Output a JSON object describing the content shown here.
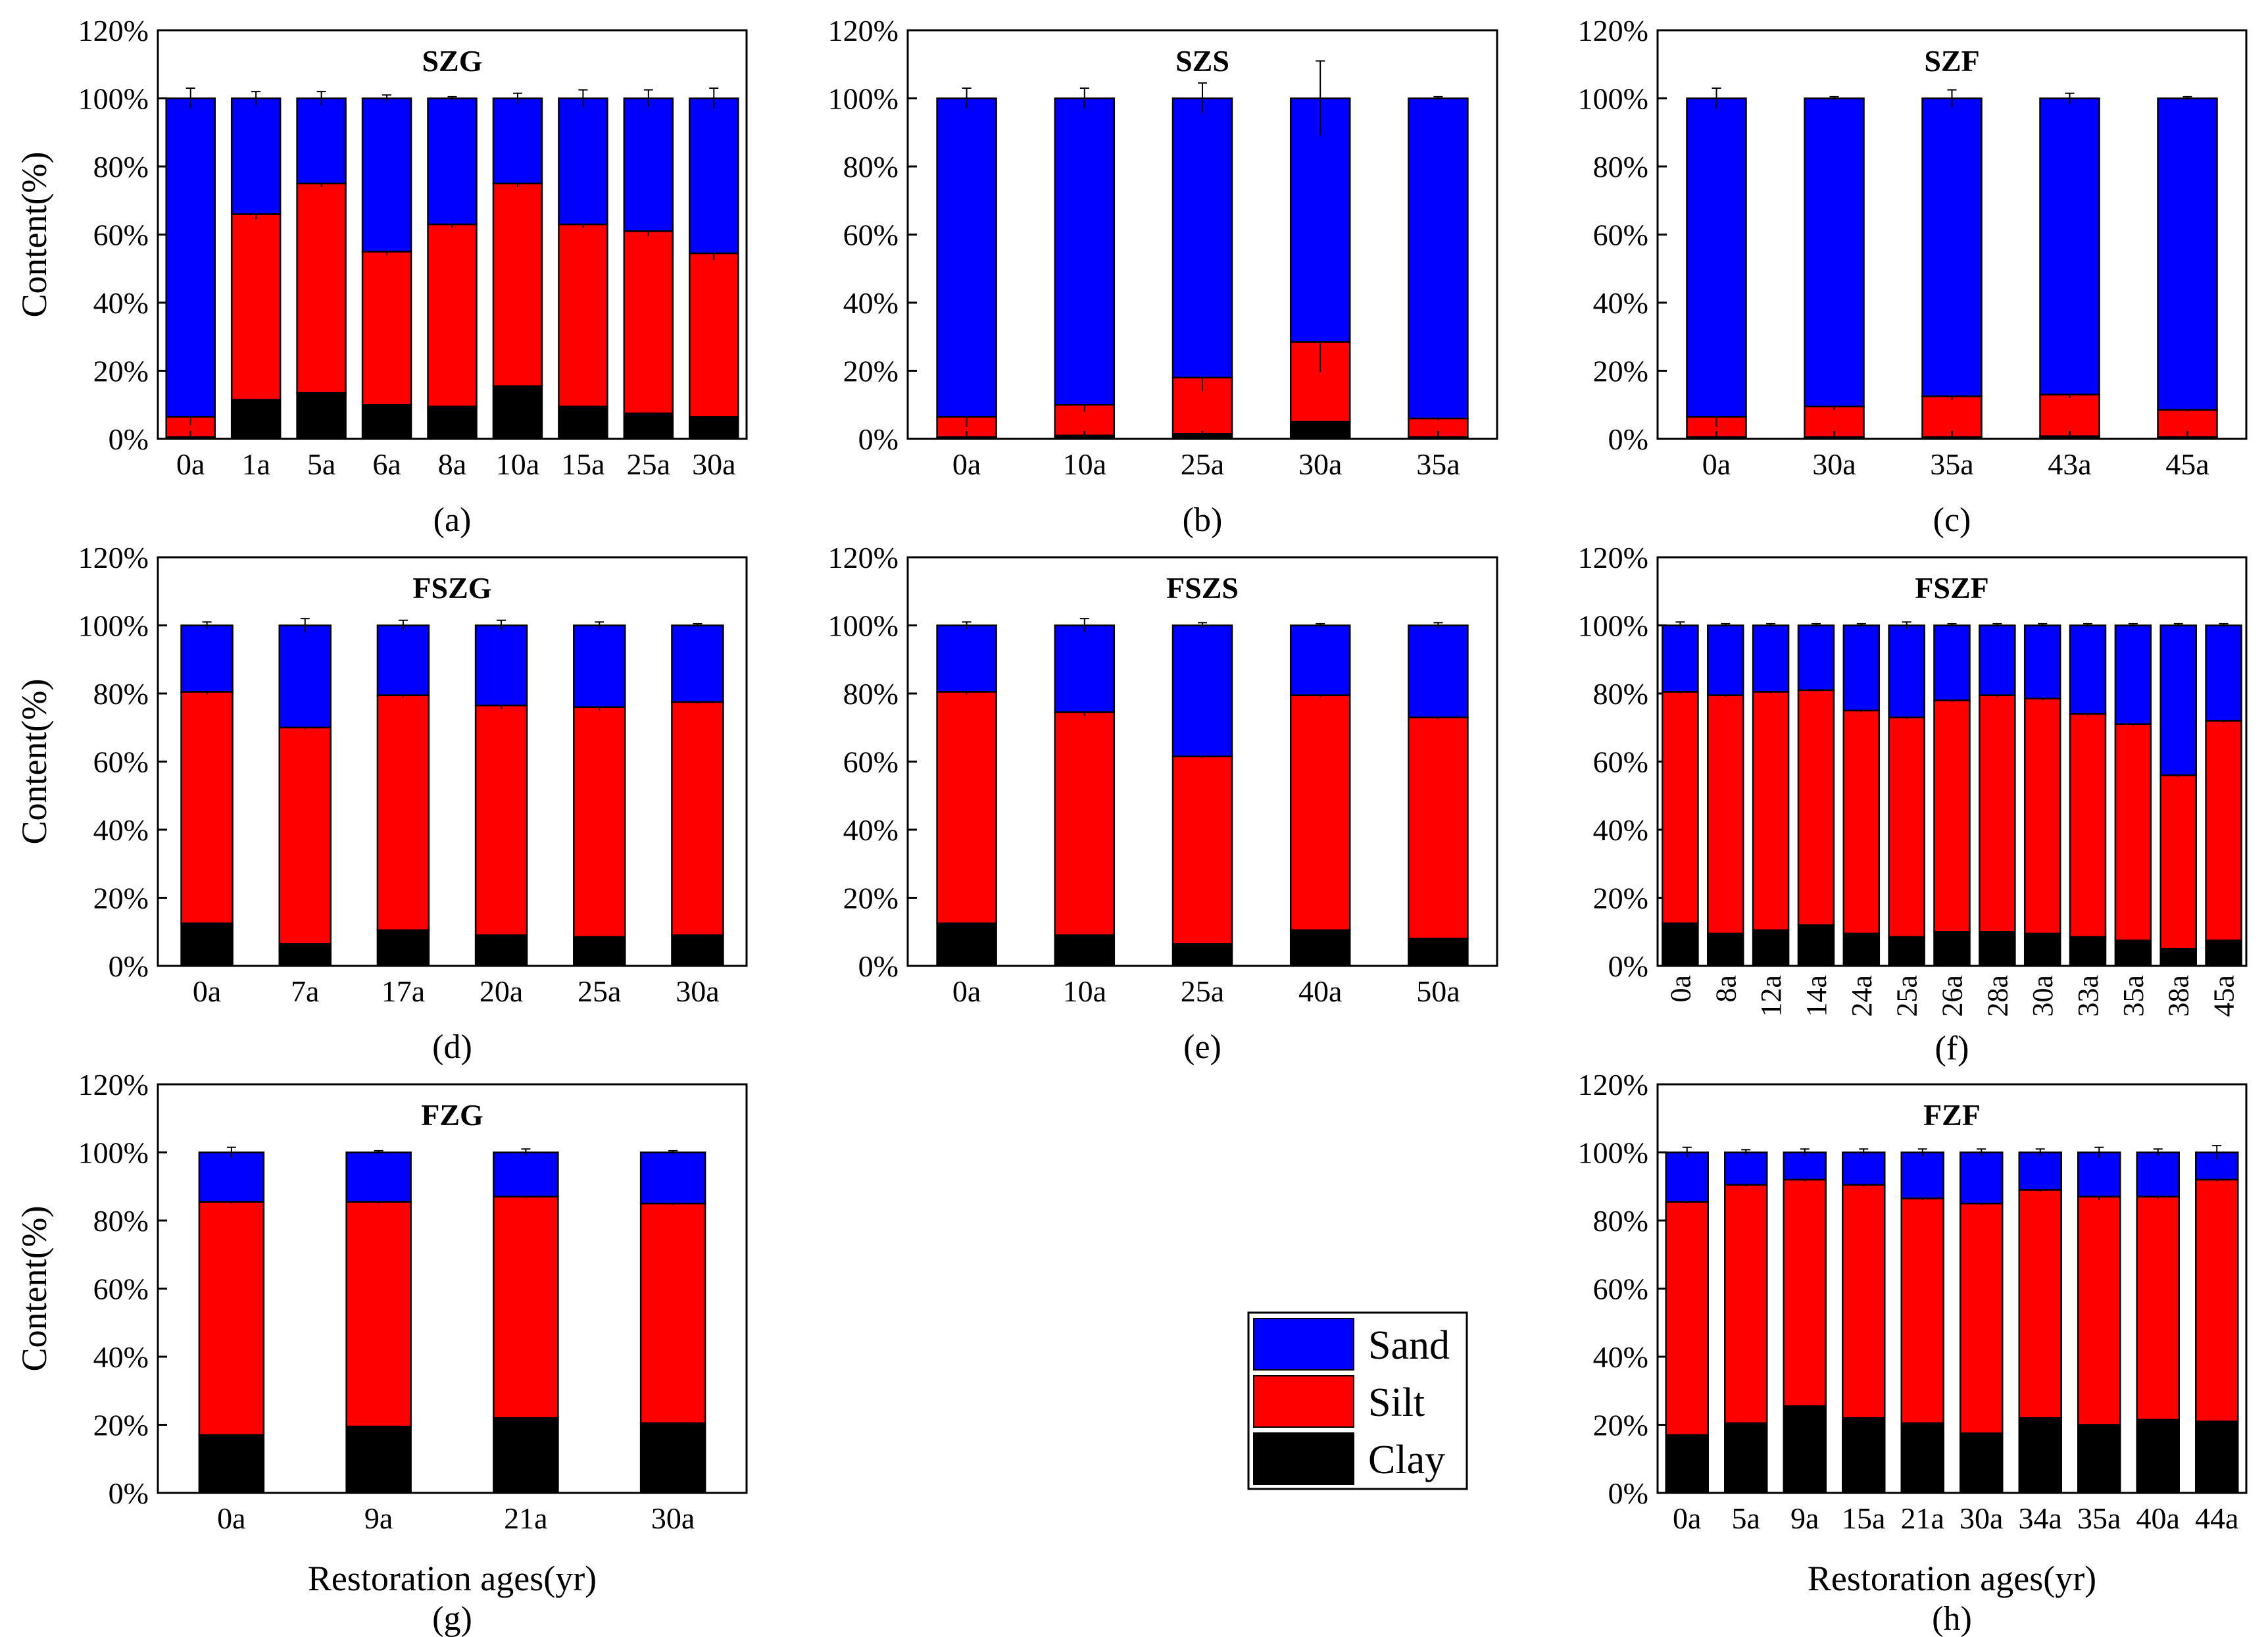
{
  "figure": {
    "y_axis_label": "Content(%)",
    "x_axis_label": "Restoration ages(yr)",
    "legend": [
      {
        "name": "Sand",
        "color": "#0000ff"
      },
      {
        "name": "Silt",
        "color": "#ff0000"
      },
      {
        "name": "Clay",
        "color": "#000000"
      }
    ],
    "y_ticks": [
      "0%",
      "20%",
      "40%",
      "60%",
      "80%",
      "100%",
      "120%"
    ]
  },
  "chart_data": [
    {
      "type": "bar",
      "stacked": true,
      "title": "SZG",
      "panel_label": "(a)",
      "categories": [
        "0a",
        "1a",
        "5a",
        "6a",
        "8a",
        "10a",
        "15a",
        "25a",
        "30a"
      ],
      "series": [
        {
          "name": "Clay",
          "values": [
            0.5,
            11.5,
            13.5,
            10,
            9.5,
            15.5,
            9.5,
            7.5,
            6.5
          ]
        },
        {
          "name": "Silt",
          "values": [
            6,
            54.5,
            61.5,
            45,
            53.5,
            59.5,
            53.5,
            53.5,
            48
          ]
        },
        {
          "name": "Sand",
          "values": [
            93.5,
            34,
            25,
            45,
            37,
            25,
            37,
            39,
            45.5
          ]
        }
      ],
      "error_bars": {
        "Clay": [
          0.5,
          1,
          0.8,
          0.8,
          0.8,
          2,
          0.8,
          0.8,
          0.8
        ],
        "Silt": [
          2.5,
          1.5,
          1,
          1,
          1,
          1,
          1,
          1.5,
          2
        ],
        "Sand": [
          3,
          2,
          2,
          1,
          0.5,
          1.5,
          2.5,
          2.5,
          3
        ]
      },
      "ylim": [
        0,
        120
      ],
      "ylabel": "Content(%)",
      "xlabel": ""
    },
    {
      "type": "bar",
      "stacked": true,
      "title": "SZS",
      "panel_label": "(b)",
      "categories": [
        "0a",
        "10a",
        "25a",
        "30a",
        "35a"
      ],
      "series": [
        {
          "name": "Clay",
          "values": [
            0.5,
            1,
            1.5,
            5,
            0.5
          ]
        },
        {
          "name": "Silt",
          "values": [
            6,
            9,
            16.5,
            23.5,
            5.5
          ]
        },
        {
          "name": "Sand",
          "values": [
            93.5,
            90,
            82,
            71.5,
            94
          ]
        }
      ],
      "error_bars": {
        "Clay": [
          0.5,
          0.5,
          0.5,
          2,
          0.3
        ],
        "Silt": [
          3,
          2,
          4,
          9,
          0.5
        ],
        "Sand": [
          3,
          3,
          4.5,
          11,
          0.5
        ]
      },
      "ylim": [
        0,
        120
      ],
      "ylabel": "",
      "xlabel": ""
    },
    {
      "type": "bar",
      "stacked": true,
      "title": "SZF",
      "panel_label": "(c)",
      "categories": [
        "0a",
        "30a",
        "35a",
        "43a",
        "45a"
      ],
      "series": [
        {
          "name": "Clay",
          "values": [
            0.5,
            0.5,
            0.5,
            0.8,
            0.5
          ]
        },
        {
          "name": "Silt",
          "values": [
            6,
            9,
            12,
            12.2,
            8
          ]
        },
        {
          "name": "Sand",
          "values": [
            93.5,
            90.5,
            87.5,
            87,
            91.5
          ]
        }
      ],
      "error_bars": {
        "Clay": [
          0.5,
          0.3,
          0.3,
          0.3,
          0.3
        ],
        "Silt": [
          3,
          1,
          1,
          1,
          0.5
        ],
        "Sand": [
          3,
          0.5,
          2.5,
          1.5,
          0.5
        ]
      },
      "ylim": [
        0,
        120
      ],
      "ylabel": "",
      "xlabel": ""
    },
    {
      "type": "bar",
      "stacked": true,
      "title": "FSZG",
      "panel_label": "(d)",
      "categories": [
        "0a",
        "7a",
        "17a",
        "20a",
        "25a",
        "30a"
      ],
      "series": [
        {
          "name": "Clay",
          "values": [
            12.5,
            6.5,
            10.5,
            9,
            8.5,
            9
          ]
        },
        {
          "name": "Silt",
          "values": [
            68,
            63.5,
            69,
            67.5,
            67.5,
            68.5
          ]
        },
        {
          "name": "Sand",
          "values": [
            19.5,
            30,
            20.5,
            23.5,
            24,
            22.5
          ]
        }
      ],
      "error_bars": {
        "Clay": [
          1.5,
          0.5,
          0.5,
          0.5,
          0.5,
          0.5
        ],
        "Silt": [
          0.8,
          0.5,
          0.5,
          1,
          1,
          0.5
        ],
        "Sand": [
          1,
          2,
          1.5,
          1.5,
          1,
          0.5
        ]
      },
      "ylim": [
        0,
        120
      ],
      "ylabel": "Content(%)",
      "xlabel": ""
    },
    {
      "type": "bar",
      "stacked": true,
      "title": "FSZS",
      "panel_label": "(e)",
      "categories": [
        "0a",
        "10a",
        "25a",
        "40a",
        "50a"
      ],
      "series": [
        {
          "name": "Clay",
          "values": [
            12.5,
            9,
            6.5,
            10.5,
            8
          ]
        },
        {
          "name": "Silt",
          "values": [
            68,
            65.5,
            55,
            69,
            65
          ]
        },
        {
          "name": "Sand",
          "values": [
            19.5,
            25.5,
            38.5,
            20.5,
            27
          ]
        }
      ],
      "error_bars": {
        "Clay": [
          1.5,
          0.5,
          0.5,
          0.5,
          0.5
        ],
        "Silt": [
          0.8,
          1,
          0.5,
          0.5,
          0.5
        ],
        "Sand": [
          1,
          2,
          0.8,
          0.5,
          0.8
        ]
      },
      "ylim": [
        0,
        120
      ],
      "ylabel": "",
      "xlabel": ""
    },
    {
      "type": "bar",
      "stacked": true,
      "title": "FSZF",
      "panel_label": "(f)",
      "categories": [
        "0a",
        "8a",
        "12a",
        "14a",
        "24a",
        "25a",
        "26a",
        "28a",
        "30a",
        "33a",
        "35a",
        "38a",
        "45a"
      ],
      "series": [
        {
          "name": "Clay",
          "values": [
            12.5,
            9.5,
            10.5,
            12,
            9.5,
            8.5,
            10,
            10,
            9.5,
            8.5,
            7.5,
            5,
            7.5
          ]
        },
        {
          "name": "Silt",
          "values": [
            68,
            70,
            70,
            69,
            65.5,
            64.5,
            68,
            69.5,
            69,
            65.5,
            63.5,
            51,
            64.5
          ]
        },
        {
          "name": "Sand",
          "values": [
            19.5,
            20.5,
            19.5,
            19,
            25,
            27,
            22,
            20.5,
            21.5,
            26,
            29,
            44,
            28
          ]
        }
      ],
      "error_bars": {
        "Clay": [
          1.5,
          0.5,
          0.5,
          0.5,
          0.5,
          0.5,
          0.5,
          0.5,
          0.5,
          0.5,
          0.5,
          0.5,
          0.5
        ],
        "Silt": [
          0.5,
          0.5,
          0.5,
          0.5,
          0.5,
          0.5,
          0.5,
          0.5,
          0.5,
          0.5,
          0.5,
          0.5,
          0.5
        ],
        "Sand": [
          1,
          0.5,
          0.5,
          0.5,
          0.5,
          1,
          0.5,
          0.5,
          0.5,
          0.5,
          0.5,
          0.5,
          0.5
        ]
      },
      "ylim": [
        0,
        120
      ],
      "ylabel": "",
      "xlabel": ""
    },
    {
      "type": "bar",
      "stacked": true,
      "title": "FZG",
      "panel_label": "(g)",
      "categories": [
        "0a",
        "9a",
        "21a",
        "30a"
      ],
      "series": [
        {
          "name": "Clay",
          "values": [
            17,
            19.5,
            22,
            20.5
          ]
        },
        {
          "name": "Silt",
          "values": [
            68.5,
            66,
            65,
            64.5
          ]
        },
        {
          "name": "Sand",
          "values": [
            14.5,
            14.5,
            13,
            15
          ]
        }
      ],
      "error_bars": {
        "Clay": [
          1.5,
          0.5,
          0.5,
          0.5
        ],
        "Silt": [
          0.5,
          0.5,
          0.5,
          0.5
        ],
        "Sand": [
          1.5,
          0.5,
          1,
          0.5
        ]
      },
      "ylim": [
        0,
        120
      ],
      "ylabel": "Content(%)",
      "xlabel": "Restoration ages(yr)"
    },
    {
      "type": "bar",
      "stacked": true,
      "title": "FZF",
      "panel_label": "(h)",
      "categories": [
        "0a",
        "5a",
        "9a",
        "15a",
        "21a",
        "30a",
        "34a",
        "35a",
        "40a",
        "44a"
      ],
      "series": [
        {
          "name": "Clay",
          "values": [
            17,
            20.5,
            25.5,
            22,
            20.5,
            17.5,
            22,
            20,
            21.5,
            21
          ]
        },
        {
          "name": "Silt",
          "values": [
            68.5,
            70,
            66.5,
            68.5,
            66,
            67.5,
            67,
            67,
            65.5,
            71
          ]
        },
        {
          "name": "Sand",
          "values": [
            14.5,
            9.5,
            8,
            9.5,
            13.5,
            15,
            11,
            13,
            13,
            8
          ]
        }
      ],
      "error_bars": {
        "Clay": [
          1,
          0.5,
          1,
          0.5,
          0.5,
          1,
          0.5,
          2,
          0.5,
          0.5
        ],
        "Silt": [
          0.5,
          0.5,
          0.5,
          0.5,
          0.5,
          0.5,
          0.5,
          1,
          0.5,
          0.5
        ],
        "Sand": [
          1.5,
          0.8,
          1,
          1,
          1,
          1,
          1,
          1.5,
          1,
          2
        ]
      },
      "ylim": [
        0,
        120
      ],
      "ylabel": "",
      "xlabel": "Restoration ages(yr)"
    }
  ]
}
